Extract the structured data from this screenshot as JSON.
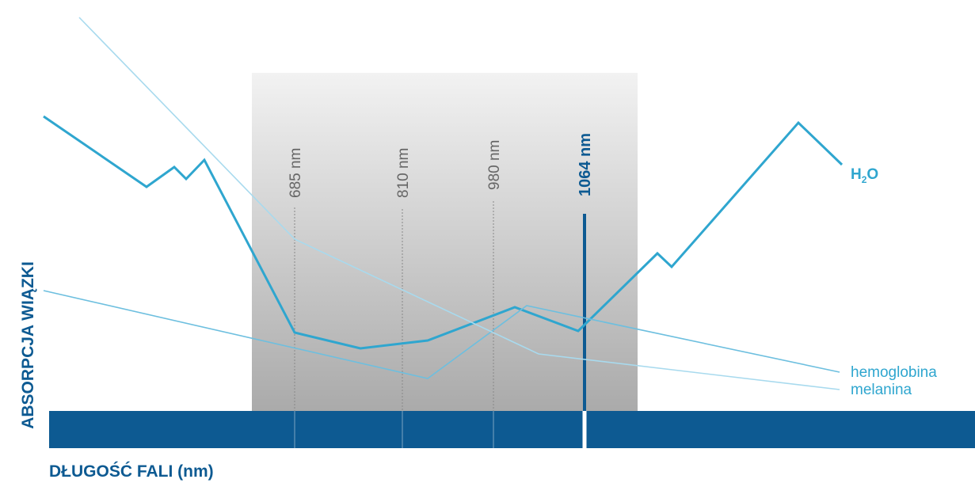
{
  "chart_data": {
    "type": "line",
    "title": "",
    "xlabel": "DŁUGOŚĆ FALI (nm)",
    "ylabel": "ABSORPCJA WIĄZKI",
    "grid": false,
    "x_ticks_visible": false,
    "y_ticks_visible": false,
    "markers": [
      {
        "label": "685 nm",
        "highlight": false
      },
      {
        "label": "810 nm",
        "highlight": false
      },
      {
        "label": "980 nm",
        "highlight": false
      },
      {
        "label": "1064 nm",
        "highlight": true
      }
    ],
    "series": [
      {
        "name": "H₂O",
        "label": "H",
        "label_sub": "2",
        "label_tail": "O",
        "color": "#2fa6cf",
        "weight": "bold",
        "points": [
          [
            55,
            147
          ],
          [
            185,
            236
          ],
          [
            220,
            211
          ],
          [
            235,
            226
          ],
          [
            258,
            202
          ],
          [
            372,
            420
          ],
          [
            455,
            440
          ],
          [
            540,
            430
          ],
          [
            650,
            388
          ],
          [
            730,
            418
          ],
          [
            830,
            320
          ],
          [
            848,
            337
          ],
          [
            1008,
            155
          ],
          [
            1063,
            208
          ]
        ]
      },
      {
        "name": "hemoglobina",
        "label": "hemoglobina",
        "color": "#6dbfdf",
        "weight": "light",
        "points": [
          [
            55,
            367
          ],
          [
            540,
            478
          ],
          [
            665,
            386
          ],
          [
            1060,
            470
          ]
        ]
      },
      {
        "name": "melanina",
        "label": "melanina",
        "color": "#a8daee",
        "weight": "light",
        "points": [
          [
            100,
            22
          ],
          [
            372,
            302
          ],
          [
            680,
            447
          ],
          [
            1060,
            492
          ]
        ]
      }
    ],
    "colors": {
      "band": "#0d5a92",
      "highlight": "#0d5a92",
      "shade_top": "#f2f2f2",
      "shade_bottom": "#aaaaaa"
    }
  }
}
